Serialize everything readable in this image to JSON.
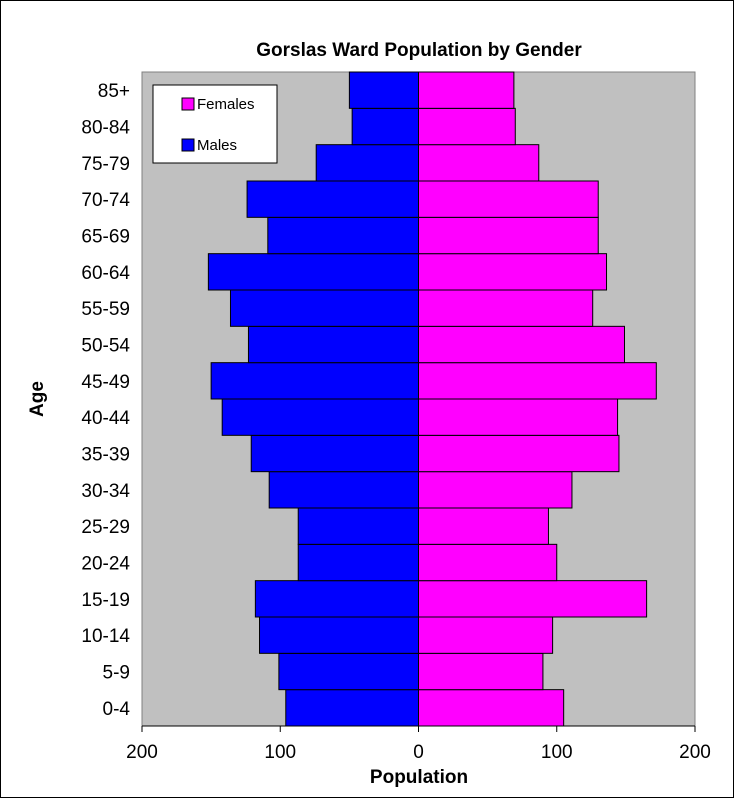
{
  "chart_data": {
    "type": "bar",
    "orientation": "horizontal",
    "title": "Gorslas Ward Population by Gender",
    "xlabel": "Population",
    "ylabel": "Age",
    "categories": [
      "0-4",
      "5-9",
      "10-14",
      "15-19",
      "20-24",
      "25-29",
      "30-34",
      "35-39",
      "40-44",
      "45-49",
      "50-54",
      "55-59",
      "60-64",
      "65-69",
      "70-74",
      "75-79",
      "80-84",
      "85+"
    ],
    "series": [
      {
        "name": "Males",
        "color": "#0000ff",
        "values": [
          96,
          101,
          115,
          118,
          87,
          87,
          108,
          121,
          142,
          150,
          123,
          136,
          152,
          109,
          124,
          74,
          48,
          50
        ]
      },
      {
        "name": "Females",
        "color": "#ff00ff",
        "values": [
          105,
          90,
          97,
          165,
          100,
          94,
          111,
          145,
          144,
          172,
          149,
          126,
          136,
          130,
          130,
          87,
          70,
          69
        ]
      }
    ],
    "xlim": [
      -200,
      200
    ],
    "xticks": [
      {
        "value": -200,
        "label": "200"
      },
      {
        "value": -100,
        "label": "100"
      },
      {
        "value": 0,
        "label": "0"
      },
      {
        "value": 100,
        "label": "100"
      },
      {
        "value": 200,
        "label": "200"
      }
    ],
    "grid": false,
    "plot_background": "#c0c0c0",
    "legend": {
      "placement": "top-left",
      "order": [
        "Females",
        "Males"
      ]
    }
  }
}
